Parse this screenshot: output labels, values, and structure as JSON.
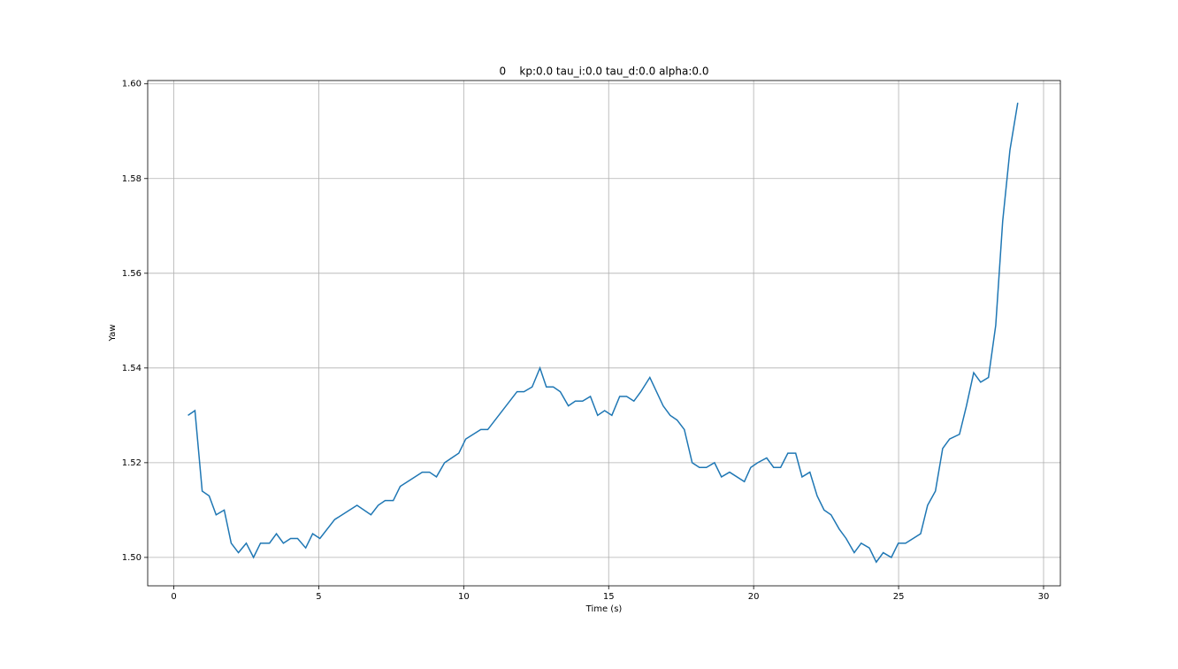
{
  "chart_data": {
    "type": "line",
    "title": "0    kp:0.0 tau_i:0.0 tau_d:0.0 alpha:0.0",
    "xlabel": "Time (s)",
    "ylabel": "Yaw",
    "x": [
      0.49,
      0.73,
      0.98,
      1.22,
      1.46,
      1.74,
      1.98,
      2.23,
      2.5,
      2.75,
      2.99,
      3.3,
      3.54,
      3.78,
      4.03,
      4.27,
      4.55,
      4.79,
      5.04,
      5.55,
      6.32,
      6.8,
      7.05,
      7.29,
      7.57,
      7.81,
      8.57,
      8.82,
      9.06,
      9.34,
      9.83,
      10.07,
      10.59,
      10.83,
      11.84,
      12.08,
      12.36,
      12.63,
      12.85,
      13.09,
      13.33,
      13.61,
      13.85,
      14.1,
      14.37,
      14.62,
      14.86,
      15.11,
      15.38,
      15.62,
      15.87,
      16.11,
      16.42,
      16.88,
      17.12,
      17.36,
      17.61,
      17.88,
      18.13,
      18.37,
      18.65,
      18.89,
      19.17,
      19.68,
      19.9,
      20.14,
      20.45,
      20.69,
      20.93,
      21.18,
      21.45,
      21.67,
      21.94,
      22.19,
      22.43,
      22.67,
      22.95,
      23.19,
      23.47,
      23.71,
      23.99,
      24.23,
      24.47,
      24.75,
      24.99,
      25.24,
      25.76,
      26.0,
      26.27,
      26.52,
      26.76,
      27.1,
      27.34,
      27.59,
      27.83,
      28.1,
      28.35,
      28.59,
      28.84,
      29.11
    ],
    "series": [
      {
        "name": "Yaw",
        "color": "#1f77b4",
        "values": [
          1.53,
          1.531,
          1.514,
          1.513,
          1.509,
          1.51,
          1.503,
          1.501,
          1.503,
          1.5,
          1.503,
          1.503,
          1.505,
          1.503,
          1.504,
          1.504,
          1.502,
          1.505,
          1.504,
          1.508,
          1.511,
          1.509,
          1.511,
          1.512,
          1.512,
          1.515,
          1.518,
          1.518,
          1.517,
          1.52,
          1.522,
          1.525,
          1.527,
          1.527,
          1.535,
          1.535,
          1.536,
          1.54,
          1.536,
          1.536,
          1.535,
          1.532,
          1.533,
          1.533,
          1.534,
          1.53,
          1.531,
          1.53,
          1.534,
          1.534,
          1.533,
          1.535,
          1.538,
          1.532,
          1.53,
          1.529,
          1.527,
          1.52,
          1.519,
          1.519,
          1.52,
          1.517,
          1.518,
          1.516,
          1.519,
          1.52,
          1.521,
          1.519,
          1.519,
          1.522,
          1.522,
          1.517,
          1.518,
          1.513,
          1.51,
          1.509,
          1.506,
          1.504,
          1.501,
          1.503,
          1.502,
          1.499,
          1.501,
          1.5,
          1.503,
          1.503,
          1.505,
          1.511,
          1.514,
          1.523,
          1.525,
          1.526,
          1.532,
          1.539,
          1.537,
          1.538,
          1.549,
          1.571,
          1.586,
          1.596
        ]
      }
    ],
    "xlim": [
      -0.9,
      30.58
    ],
    "xticks": [
      0,
      5,
      10,
      15,
      20,
      25,
      30
    ],
    "ylim": [
      1.494,
      1.6007
    ],
    "yticks": [
      {
        "value": 1.5,
        "label": "1.50"
      },
      1.52,
      1.54,
      1.56,
      1.58,
      {
        "value": 1.6,
        "label": "1.60"
      }
    ],
    "grid": true
  }
}
